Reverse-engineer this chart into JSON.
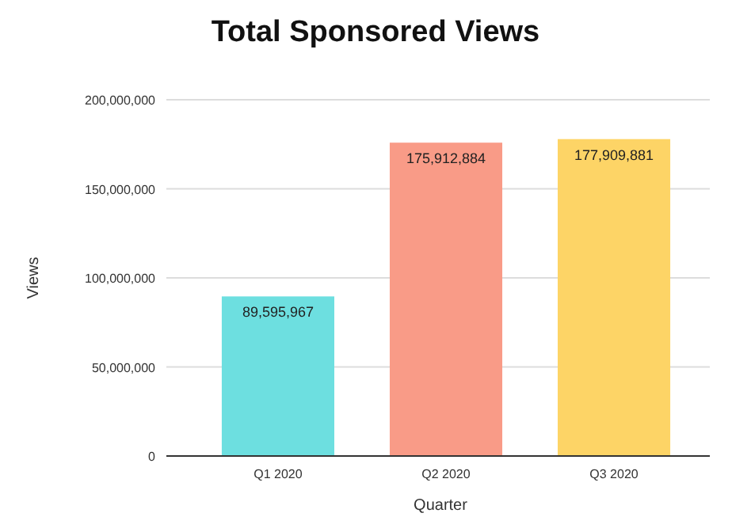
{
  "chart_data": {
    "type": "bar",
    "title": "Total Sponsored Views",
    "xlabel": "Quarter",
    "ylabel": "Views",
    "categories": [
      "Q1 2020",
      "Q2 2020",
      "Q3 2020"
    ],
    "values": [
      89595967,
      175912884,
      177909881
    ],
    "colors": [
      "#6ddfe0",
      "#f99b87",
      "#fdd466"
    ],
    "ylim": [
      0,
      200000000
    ],
    "yticks": [
      {
        "value": 0,
        "label": "0"
      },
      {
        "value": 50000000,
        "label": "50,000,000"
      },
      {
        "value": 100000000,
        "label": "100,000,000"
      },
      {
        "value": 150000000,
        "label": "150,000,000"
      },
      {
        "value": 200000000,
        "label": "200,000,000"
      }
    ],
    "value_labels": [
      "89,595,967",
      "175,912,884",
      "177,909,881"
    ],
    "grid": "y",
    "legend": false
  }
}
